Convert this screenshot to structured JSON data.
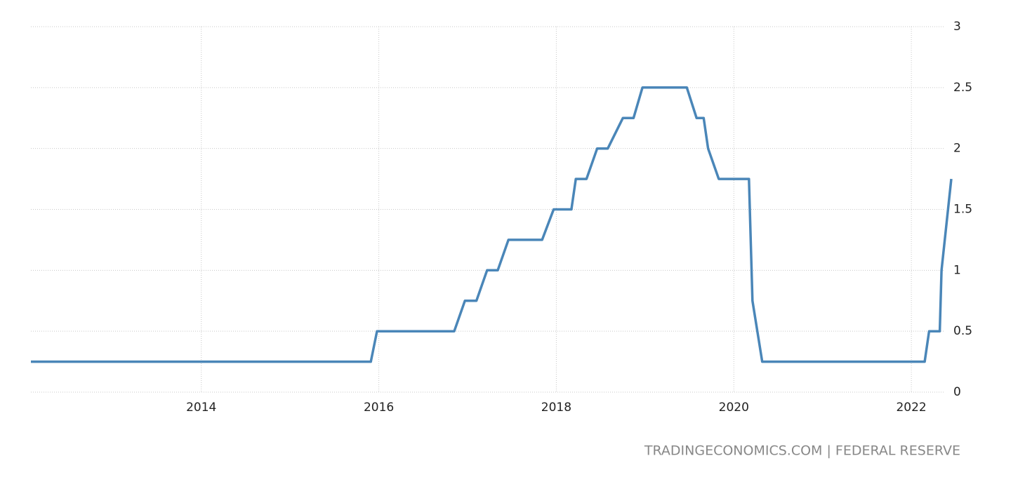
{
  "chart_data": {
    "type": "line",
    "x": [
      2012.08,
      2015.91,
      2015.98,
      2016.85,
      2016.97,
      2017.1,
      2017.22,
      2017.34,
      2017.46,
      2017.84,
      2017.97,
      2018.17,
      2018.22,
      2018.34,
      2018.46,
      2018.58,
      2018.75,
      2018.87,
      2018.97,
      2019.47,
      2019.58,
      2019.66,
      2019.71,
      2019.83,
      2020.17,
      2020.21,
      2020.32,
      2022.15,
      2022.2,
      2022.32,
      2022.34,
      2022.45
    ],
    "values": [
      0.25,
      0.25,
      0.5,
      0.5,
      0.75,
      0.75,
      1,
      1,
      1.25,
      1.25,
      1.5,
      1.5,
      1.75,
      1.75,
      2,
      2,
      2.25,
      2.25,
      2.5,
      2.5,
      2.25,
      2.25,
      2,
      1.75,
      1.75,
      0.75,
      0.25,
      0.25,
      0.5,
      0.5,
      1,
      1.75
    ],
    "color": "#4a86b8",
    "xlim": [
      2012.08,
      2022.45
    ],
    "xticks": [
      2014,
      2016,
      2018,
      2020,
      2022
    ],
    "ylim": [
      0,
      3
    ],
    "yticks": [
      0,
      0.5,
      1,
      1.5,
      2,
      2.5,
      3
    ],
    "grid": true,
    "source": "TRADINGECONOMICS.COM | FEDERAL RESERVE"
  }
}
